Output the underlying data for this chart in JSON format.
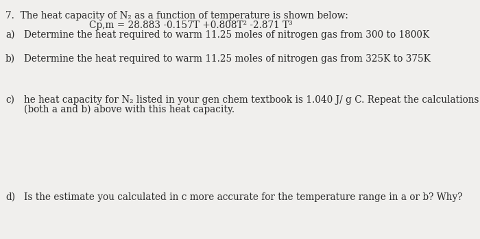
{
  "background_color": "#f0efed",
  "text_color": "#2a2a2a",
  "title_number": "7.",
  "line1": "  The heat capacity of N₂ as a function of temperature is shown below:",
  "line2": "Cp,m = 28.883 -0.157T +0.808T² -2.871 T³",
  "part_a_label": "a)",
  "part_a_text": "Determine the heat required to warm 11.25 moles of nitrogen gas from 300 to 1800K",
  "part_b_label": "b)",
  "part_b_text": "Determine the heat required to warm 11.25 moles of nitrogen gas from 325K to 375K",
  "part_c_label": "c)",
  "part_c_text1": "he heat capacity for N₂ listed in your gen chem textbook is 1.040 J/ g C. Repeat the calculations",
  "part_c_text2": "(both a and b) above with this heat capacity.",
  "part_d_label": "d)",
  "part_d_text": "Is the estimate you calculated in c more accurate for the temperature range in a or b? Why?",
  "font_size": 9.8,
  "font_family": "DejaVu Serif"
}
